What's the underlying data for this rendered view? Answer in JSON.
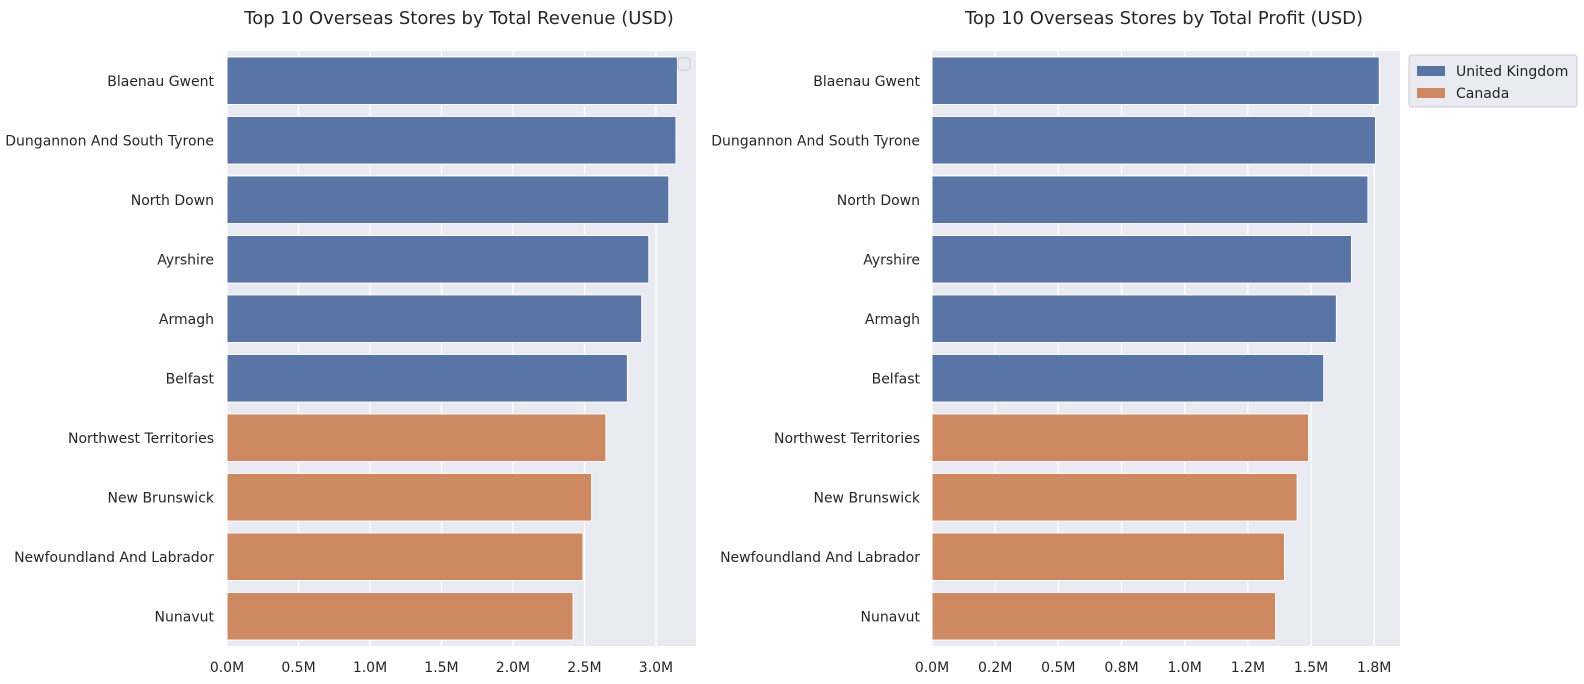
{
  "colors": {
    "panel_background": "#EAEAF2",
    "grid": "#FFFFFF",
    "United Kingdom": "#5875A5",
    "Canada": "#CE8963"
  },
  "legend": {
    "entries": [
      {
        "label": "United Kingdom"
      },
      {
        "label": "Canada"
      }
    ]
  },
  "chart_data": [
    {
      "type": "bar",
      "orientation": "horizontal",
      "title": "Top 10 Overseas Stores by Total Revenue (USD)",
      "xlabel": "",
      "ylabel": "",
      "categories": [
        "Blaenau Gwent",
        "Dungannon And South Tyrone",
        "North Down",
        "Ayrshire",
        "Armagh",
        "Belfast",
        "Northwest Territories",
        "New Brunswick",
        "Newfoundland And Labrador",
        "Nunavut"
      ],
      "values": [
        3.15,
        3.14,
        3.09,
        2.95,
        2.9,
        2.8,
        2.65,
        2.55,
        2.49,
        2.42
      ],
      "value_unit": "M USD",
      "country": [
        "United Kingdom",
        "United Kingdom",
        "United Kingdom",
        "United Kingdom",
        "United Kingdom",
        "United Kingdom",
        "Canada",
        "Canada",
        "Canada",
        "Canada"
      ],
      "xlim": [
        0,
        3.28
      ],
      "xticks": [
        0,
        0.5,
        1.0,
        1.5,
        2.0,
        2.5,
        3.0
      ],
      "xtick_labels": [
        "0.0M",
        "0.5M",
        "1.0M",
        "1.5M",
        "2.0M",
        "2.5M",
        "3.0M"
      ],
      "grid": true,
      "legend": "empty box, upper right"
    },
    {
      "type": "bar",
      "orientation": "horizontal",
      "title": "Top 10 Overseas Stores by Total Profit (USD)",
      "xlabel": "",
      "ylabel": "",
      "categories": [
        "Blaenau Gwent",
        "Dungannon And South Tyrone",
        "North Down",
        "Ayrshire",
        "Armagh",
        "Belfast",
        "Northwest Territories",
        "New Brunswick",
        "Newfoundland And Labrador",
        "Nunavut"
      ],
      "values": [
        1.77,
        1.755,
        1.725,
        1.66,
        1.6,
        1.55,
        1.49,
        1.445,
        1.395,
        1.36
      ],
      "value_unit": "M USD",
      "country": [
        "United Kingdom",
        "United Kingdom",
        "United Kingdom",
        "United Kingdom",
        "United Kingdom",
        "United Kingdom",
        "Canada",
        "Canada",
        "Canada",
        "Canada"
      ],
      "xlim": [
        0,
        1.852
      ],
      "xticks": [
        0,
        0.25,
        0.5,
        0.75,
        1.0,
        1.25,
        1.5,
        1.75
      ],
      "xtick_labels": [
        "0.0M",
        "0.2M",
        "0.5M",
        "0.8M",
        "1.0M",
        "1.2M",
        "1.5M",
        "1.8M"
      ],
      "grid": true,
      "legend": "outside upper right"
    }
  ]
}
